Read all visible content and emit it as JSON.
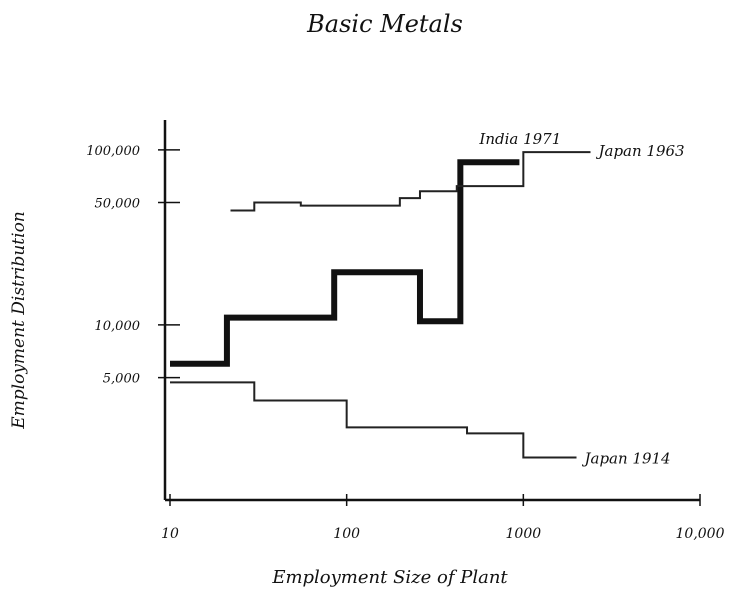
{
  "chart_data": {
    "type": "step",
    "title": "Basic Metals",
    "x_label": "Employment Size of Plant",
    "y_label": "Employment Distribution",
    "log_x": true,
    "log_y": true,
    "xlim": [
      10,
      10000
    ],
    "ylim": [
      1000,
      150000
    ],
    "xticks": [
      10,
      100,
      1000,
      {
        "value": 10000,
        "label": "10,000"
      }
    ],
    "yticks": [
      {
        "value": 5000,
        "label": "5,000"
      },
      {
        "value": 10000,
        "label": "10,000"
      },
      {
        "value": 50000,
        "label": "50,000"
      },
      {
        "value": 100000,
        "label": "100,000"
      }
    ],
    "series": [
      {
        "name": "India 1971",
        "color": "#111111",
        "x": [
          10,
          21,
          85,
          260,
          440,
          950
        ],
        "values": [
          6000,
          11000,
          20000,
          10500,
          85000,
          85000
        ]
      },
      {
        "name": "Japan 1963",
        "color": "#222222",
        "x": [
          22,
          30,
          55,
          200,
          260,
          420,
          1000,
          2400
        ],
        "values": [
          45000,
          50000,
          48000,
          53000,
          58000,
          62000,
          97000,
          97000
        ]
      },
      {
        "name": "Japan 1914",
        "color": "#222222",
        "x": [
          10,
          30,
          100,
          480,
          1000,
          2000
        ],
        "values": [
          4700,
          3700,
          2600,
          2400,
          1750,
          1750
        ]
      }
    ]
  }
}
